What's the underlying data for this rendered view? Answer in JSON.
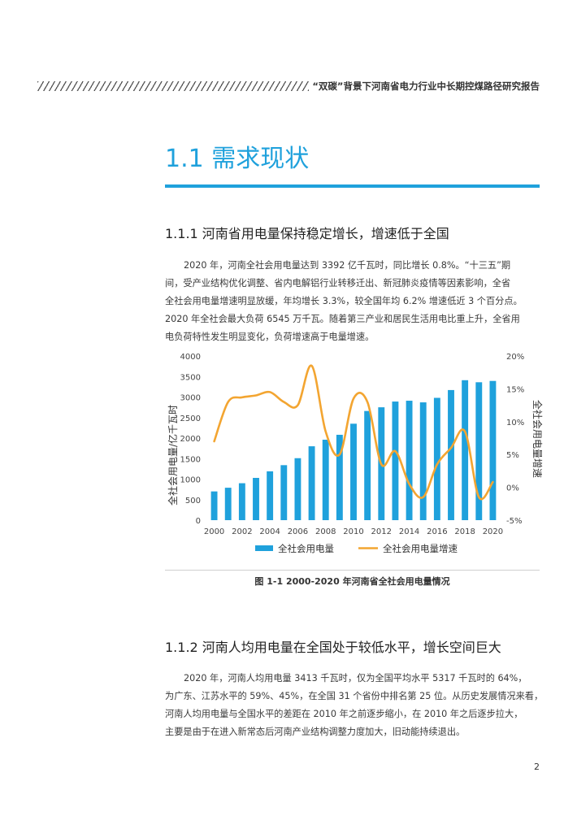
{
  "header": {
    "title": "“双碳”背景下河南省电力行业中长期控煤路径研究报告"
  },
  "section": {
    "title": "1.1  需求现状"
  },
  "sub1": {
    "heading": "1.1.1  河南省用电量保持稳定增长，增速低于全国",
    "lines": [
      "2020 年，河南全社会用电量达到 3392 亿千瓦时，同比增长 0.8%。“十三五”期",
      "间，受产业结构优化调整、省内电解铝行业转移迁出、新冠肺炎疫情等因素影响，全省",
      "全社会用电量增速明显放缓，年均增长 3.3%，较全国年均 6.2% 增速低近 3 个百分点。",
      "2020 年全社会最大负荷 6545 万千瓦。随着第三产业和居民生活用电比重上升，全省用",
      "电负荷特性发生明显变化，负荷增速高于电量增速。"
    ]
  },
  "figure": {
    "caption": "图 1-1  2000-2020 年河南省全社会用电量情况"
  },
  "sub2": {
    "heading": "1.1.2  河南人均用电量在全国处于较低水平，增长空间巨大",
    "lines": [
      "2020 年，河南人均用电量 3413 千瓦时，仅为全国平均水平 5317 千瓦时的 64%，",
      "为广东、江苏水平的 59%、45%，在全国 31 个省份中排名第 25 位。从历史发展情况来看，",
      "河南人均用电量与全国水平的差距在 2010 年之前逐步缩小，在 2010 年之后逐步拉大，",
      "主要是由于在进入新常态后河南产业结构调整力度加大，旧动能持续退出。"
    ]
  },
  "page": {
    "number": "2"
  },
  "chart_data": {
    "type": "bar+line",
    "x": [
      2000,
      2001,
      2002,
      2003,
      2004,
      2005,
      2006,
      2007,
      2008,
      2009,
      2010,
      2011,
      2012,
      2013,
      2014,
      2015,
      2016,
      2017,
      2018,
      2019,
      2020
    ],
    "x_tick_labels": [
      "2000",
      "2002",
      "2004",
      "2006",
      "2008",
      "2010",
      "2012",
      "2014",
      "2016",
      "2018",
      "2020"
    ],
    "series": [
      {
        "name": "全社会用电量",
        "type": "bar",
        "axis": "left",
        "color": "#1fa1dc",
        "values": [
          700,
          790,
          900,
          1030,
          1190,
          1340,
          1510,
          1800,
          1960,
          2080,
          2350,
          2660,
          2750,
          2890,
          2910,
          2870,
          2980,
          3170,
          3410,
          3360,
          3392
        ]
      },
      {
        "name": "全社会用电量增速",
        "type": "line",
        "axis": "right",
        "color": "#f3a531",
        "values": [
          7.0,
          13.0,
          13.7,
          14.0,
          14.5,
          13.0,
          12.5,
          18.5,
          8.5,
          5.0,
          13.5,
          13.0,
          3.5,
          5.5,
          0.5,
          -1.5,
          3.5,
          6.0,
          8.5,
          -1.5,
          0.8
        ]
      }
    ],
    "y_left": {
      "label": "全社会用电量/亿千瓦时",
      "lim": [
        0,
        4000
      ],
      "ticks": [
        "0",
        "500",
        "1000",
        "1500",
        "2000",
        "2500",
        "3000",
        "3500",
        "4000"
      ]
    },
    "y_right": {
      "label": "全社会用电量增速",
      "lim": [
        -5,
        20
      ],
      "ticks": [
        "-5%",
        "0%",
        "5%",
        "10%",
        "15%",
        "20%"
      ]
    },
    "legend": {
      "position": "bottom",
      "items": [
        "全社会用电量",
        "全社会用电量增速"
      ]
    },
    "grid": false
  }
}
